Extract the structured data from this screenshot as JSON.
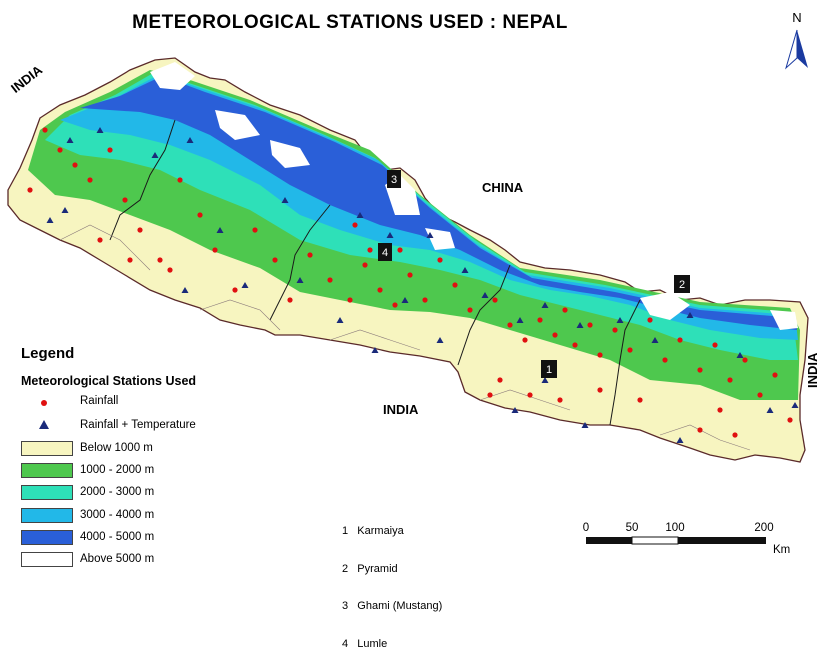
{
  "title": "METEOROLOGICAL STATIONS USED : NEPAL",
  "north_label": "N",
  "country_labels": {
    "india_nw": "INDIA",
    "china": "CHINA",
    "india_south": "INDIA",
    "india_east": "INDIA"
  },
  "legend": {
    "title": "Legend",
    "subtitle": "Meteorological Stations Used",
    "symbols": [
      {
        "label": "Rainfall",
        "shape": "circle",
        "color": "#e01010"
      },
      {
        "label": "Rainfall + Temperature",
        "shape": "triangle",
        "color": "#1a2a7a"
      }
    ],
    "elevation_classes": [
      {
        "label": "Below 1000 m",
        "color": "#f7f5c0"
      },
      {
        "label": "1000 - 2000 m",
        "color": "#4ec84e"
      },
      {
        "label": "2000 - 3000 m",
        "color": "#2ee0b8"
      },
      {
        "label": "3000 - 4000 m",
        "color": "#22b8e8"
      },
      {
        "label": "4000 - 5000 m",
        "color": "#2a5fd8"
      },
      {
        "label": "Above 5000 m",
        "color": "#ffffff"
      }
    ]
  },
  "stations_list": [
    "1   Karmaiya",
    "2   Pyramid",
    "3   Ghami (Mustang)",
    "4   Lumle"
  ],
  "station_markers": [
    "1",
    "2",
    "3",
    "4"
  ],
  "scale_bar": {
    "ticks": [
      "0",
      "50",
      "100",
      "200"
    ],
    "unit": "Km"
  }
}
